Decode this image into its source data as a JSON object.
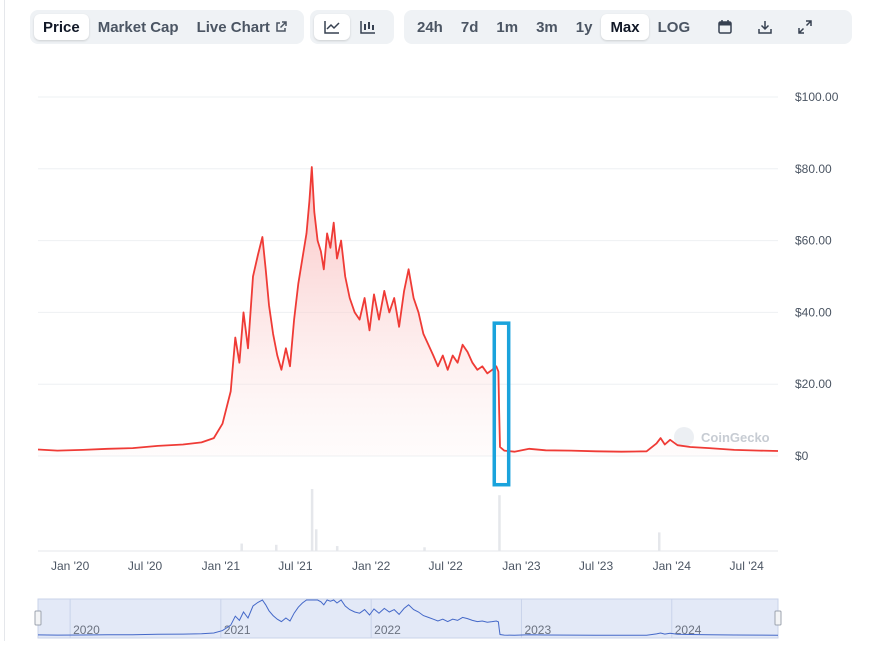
{
  "toolbar": {
    "metric_tabs": [
      {
        "label": "Price",
        "active": true
      },
      {
        "label": "Market Cap",
        "active": false
      },
      {
        "label": "Live Chart",
        "active": false
      }
    ],
    "chart_type_icons": [
      "line-chart-icon",
      "candlestick-chart-icon"
    ],
    "range_tabs": [
      {
        "label": "24h",
        "active": false
      },
      {
        "label": "7d",
        "active": false
      },
      {
        "label": "1m",
        "active": false
      },
      {
        "label": "3m",
        "active": false
      },
      {
        "label": "1y",
        "active": false
      },
      {
        "label": "Max",
        "active": true
      },
      {
        "label": "LOG",
        "active": false
      }
    ],
    "action_icons": [
      "calendar-icon",
      "download-icon",
      "fullscreen-icon"
    ]
  },
  "watermark": "CoinGecko",
  "colors": {
    "line": "#ef3b36",
    "area_top": "#f8b4b4",
    "highlight_box": "#1aa3dc",
    "navigator_line": "#4468c8",
    "navigator_fill": "#e3e9f7"
  },
  "chart_data": {
    "type": "area",
    "x_unit": "date",
    "y_unit": "USD",
    "ylim": [
      0,
      100
    ],
    "y_ticks": [
      "$100.00",
      "$80.00",
      "$60.00",
      "$40.00",
      "$20.00",
      "$0"
    ],
    "y_tick_values": [
      100,
      80,
      60,
      40,
      20,
      0
    ],
    "x_ticks": [
      "Jan '20",
      "Jul '20",
      "Jan '21",
      "Jul '21",
      "Jan '22",
      "Jul '22",
      "Jan '23",
      "Jul '23",
      "Jan '24",
      "Jul '24"
    ],
    "x_tick_dates": [
      "2020-01-01",
      "2020-07-01",
      "2021-01-01",
      "2021-07-01",
      "2022-01-01",
      "2022-07-01",
      "2023-01-01",
      "2023-07-01",
      "2024-01-01",
      "2024-07-01"
    ],
    "x_range": [
      "2019-10-15",
      "2024-09-15"
    ],
    "series": [
      {
        "points": [
          [
            "2019-10-15",
            1.8
          ],
          [
            "2019-12-01",
            1.5
          ],
          [
            "2020-02-01",
            1.7
          ],
          [
            "2020-04-01",
            2.0
          ],
          [
            "2020-06-01",
            2.2
          ],
          [
            "2020-08-01",
            2.8
          ],
          [
            "2020-10-01",
            3.2
          ],
          [
            "2020-11-15",
            3.8
          ],
          [
            "2020-12-15",
            5.0
          ],
          [
            "2021-01-05",
            9.0
          ],
          [
            "2021-01-25",
            18.0
          ],
          [
            "2021-02-05",
            33.0
          ],
          [
            "2021-02-15",
            26.0
          ],
          [
            "2021-02-25",
            40.0
          ],
          [
            "2021-03-08",
            30.0
          ],
          [
            "2021-03-20",
            50.0
          ],
          [
            "2021-04-01",
            56.0
          ],
          [
            "2021-04-12",
            61.0
          ],
          [
            "2021-04-20",
            52.0
          ],
          [
            "2021-04-28",
            42.0
          ],
          [
            "2021-05-08",
            34.0
          ],
          [
            "2021-05-18",
            28.0
          ],
          [
            "2021-05-28",
            24.0
          ],
          [
            "2021-06-08",
            30.0
          ],
          [
            "2021-06-18",
            25.0
          ],
          [
            "2021-06-28",
            38.0
          ],
          [
            "2021-07-08",
            48.0
          ],
          [
            "2021-07-18",
            55.0
          ],
          [
            "2021-07-28",
            62.0
          ],
          [
            "2021-08-04",
            71.0
          ],
          [
            "2021-08-10",
            80.5
          ],
          [
            "2021-08-16",
            68.0
          ],
          [
            "2021-08-24",
            60.0
          ],
          [
            "2021-09-01",
            57.0
          ],
          [
            "2021-09-08",
            52.0
          ],
          [
            "2021-09-16",
            62.0
          ],
          [
            "2021-09-24",
            58.0
          ],
          [
            "2021-10-02",
            65.0
          ],
          [
            "2021-10-10",
            55.0
          ],
          [
            "2021-10-20",
            60.0
          ],
          [
            "2021-10-30",
            50.0
          ],
          [
            "2021-11-10",
            44.0
          ],
          [
            "2021-11-22",
            40.0
          ],
          [
            "2021-12-04",
            38.0
          ],
          [
            "2021-12-16",
            44.0
          ],
          [
            "2021-12-28",
            35.0
          ],
          [
            "2022-01-08",
            45.0
          ],
          [
            "2022-01-20",
            38.0
          ],
          [
            "2022-02-02",
            46.0
          ],
          [
            "2022-02-14",
            40.0
          ],
          [
            "2022-02-26",
            44.0
          ],
          [
            "2022-03-10",
            36.0
          ],
          [
            "2022-03-22",
            46.0
          ],
          [
            "2022-04-02",
            52.0
          ],
          [
            "2022-04-14",
            44.0
          ],
          [
            "2022-04-26",
            40.0
          ],
          [
            "2022-05-08",
            34.0
          ],
          [
            "2022-05-20",
            31.0
          ],
          [
            "2022-06-01",
            28.0
          ],
          [
            "2022-06-12",
            25.0
          ],
          [
            "2022-06-24",
            28.0
          ],
          [
            "2022-07-06",
            24.0
          ],
          [
            "2022-07-18",
            28.0
          ],
          [
            "2022-07-30",
            26.0
          ],
          [
            "2022-08-11",
            31.0
          ],
          [
            "2022-08-23",
            29.0
          ],
          [
            "2022-09-04",
            26.0
          ],
          [
            "2022-09-16",
            24.0
          ],
          [
            "2022-09-28",
            25.0
          ],
          [
            "2022-10-10",
            23.0
          ],
          [
            "2022-10-22",
            24.0
          ],
          [
            "2022-11-01",
            25.0
          ],
          [
            "2022-11-06",
            23.5
          ],
          [
            "2022-11-08",
            12.0
          ],
          [
            "2022-11-10",
            2.5
          ],
          [
            "2022-11-20",
            1.5
          ],
          [
            "2022-12-15",
            1.2
          ],
          [
            "2023-01-20",
            2.0
          ],
          [
            "2023-03-01",
            1.6
          ],
          [
            "2023-05-01",
            1.5
          ],
          [
            "2023-07-01",
            1.3
          ],
          [
            "2023-09-01",
            1.2
          ],
          [
            "2023-11-01",
            1.3
          ],
          [
            "2023-11-25",
            3.5
          ],
          [
            "2023-12-05",
            5.0
          ],
          [
            "2023-12-15",
            3.2
          ],
          [
            "2023-12-28",
            4.5
          ],
          [
            "2024-01-15",
            3.0
          ],
          [
            "2024-02-15",
            2.5
          ],
          [
            "2024-04-01",
            2.2
          ],
          [
            "2024-06-01",
            1.7
          ],
          [
            "2024-08-01",
            1.5
          ],
          [
            "2024-09-15",
            1.4
          ]
        ]
      }
    ],
    "highlight_range": [
      "2022-10-27",
      "2022-12-01"
    ],
    "highlight_y_range": [
      -8,
      37
    ],
    "volume_spikes": [
      [
        "2021-08-10",
        1.0
      ],
      [
        "2021-08-20",
        0.35
      ],
      [
        "2022-11-08",
        0.9
      ],
      [
        "2021-02-20",
        0.12
      ],
      [
        "2023-12-01",
        0.3
      ],
      [
        "2021-05-15",
        0.1
      ],
      [
        "2021-10-10",
        0.08
      ],
      [
        "2022-05-10",
        0.06
      ]
    ],
    "navigator_years": [
      "2020",
      "2021",
      "2022",
      "2023",
      "2024"
    ],
    "navigator_year_dates": [
      "2020-01-01",
      "2021-01-01",
      "2022-01-01",
      "2023-01-01",
      "2024-01-01"
    ]
  }
}
